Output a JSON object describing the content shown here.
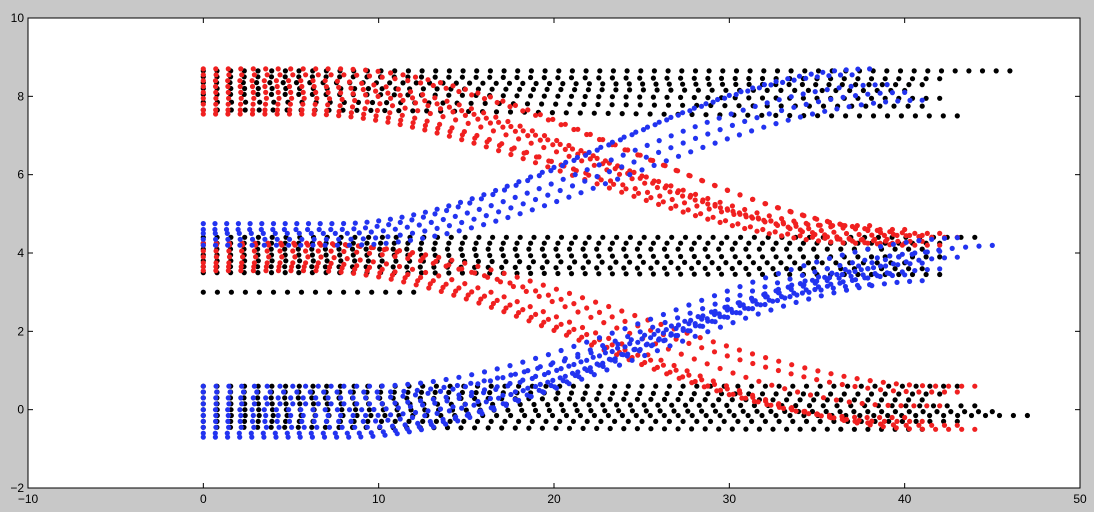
{
  "chart_data": {
    "type": "scatter",
    "title": "",
    "xlabel": "",
    "ylabel": "",
    "xlim": [
      -10,
      50
    ],
    "ylim": [
      -2,
      10
    ],
    "x_ticks": [
      -10,
      0,
      10,
      20,
      30,
      40,
      50
    ],
    "y_ticks": [
      -2,
      0,
      2,
      4,
      6,
      8,
      10
    ],
    "x_tick_labels": [
      "−10",
      "0",
      "10",
      "20",
      "30",
      "40",
      "50"
    ],
    "y_tick_labels": [
      "−2",
      "0",
      "2",
      "4",
      "6",
      "8",
      "10"
    ],
    "grid": false,
    "legend": "none",
    "colors": {
      "figure_bg": "#c8c8c8",
      "axes_bg": "#ffffff",
      "frame": "#000000"
    },
    "series": [
      {
        "color": "#000000",
        "tracks": [
          {
            "y0": 8.65,
            "y1": 8.65,
            "x_end": 46,
            "n": 60,
            "mid": 0.5
          },
          {
            "y0": 8.5,
            "y1": 8.45,
            "x_end": 42,
            "n": 55,
            "mid": 0.5
          },
          {
            "y0": 8.35,
            "y1": 8.3,
            "x_end": 41,
            "n": 55,
            "mid": 0.5
          },
          {
            "y0": 8.2,
            "y1": 8.15,
            "x_end": 40,
            "n": 52,
            "mid": 0.5
          },
          {
            "y0": 8.05,
            "y1": 7.95,
            "x_end": 42,
            "n": 55,
            "mid": 0.5
          },
          {
            "y0": 7.85,
            "y1": 7.75,
            "x_end": 41,
            "n": 52,
            "mid": 0.5
          },
          {
            "y0": 7.65,
            "y1": 7.5,
            "x_end": 43,
            "n": 55,
            "mid": 0.5
          },
          {
            "y0": 4.4,
            "y1": 4.4,
            "x_end": 44,
            "n": 57,
            "mid": 0.5
          },
          {
            "y0": 4.25,
            "y1": 4.25,
            "x_end": 42,
            "n": 55,
            "mid": 0.5
          },
          {
            "y0": 4.1,
            "y1": 4.1,
            "x_end": 41,
            "n": 54,
            "mid": 0.5
          },
          {
            "y0": 3.95,
            "y1": 3.9,
            "x_end": 42,
            "n": 55,
            "mid": 0.5
          },
          {
            "y0": 3.8,
            "y1": 3.75,
            "x_end": 40,
            "n": 52,
            "mid": 0.5
          },
          {
            "y0": 3.65,
            "y1": 3.6,
            "x_end": 41,
            "n": 54,
            "mid": 0.5
          },
          {
            "y0": 3.5,
            "y1": 3.45,
            "x_end": 42,
            "n": 55,
            "mid": 0.5
          },
          {
            "y0": 3.0,
            "y1": 3.0,
            "x_end": 12,
            "n": 16,
            "mid": 0.5
          },
          {
            "y0": 0.6,
            "y1": 0.6,
            "x_end": 43,
            "n": 56,
            "mid": 0.5
          },
          {
            "y0": 0.45,
            "y1": 0.4,
            "x_end": 42,
            "n": 55,
            "mid": 0.5
          },
          {
            "y0": 0.3,
            "y1": 0.25,
            "x_end": 41,
            "n": 54,
            "mid": 0.5
          },
          {
            "y0": 0.15,
            "y1": 0.1,
            "x_end": 44,
            "n": 57,
            "mid": 0.5
          },
          {
            "y0": 0.0,
            "y1": -0.05,
            "x_end": 45,
            "n": 58,
            "mid": 0.5
          },
          {
            "y0": -0.15,
            "y1": -0.15,
            "x_end": 47,
            "n": 60,
            "mid": 0.5
          },
          {
            "y0": -0.3,
            "y1": -0.3,
            "x_end": 43,
            "n": 56,
            "mid": 0.5
          },
          {
            "y0": -0.45,
            "y1": -0.5,
            "x_end": 41,
            "n": 54,
            "mid": 0.5
          }
        ]
      },
      {
        "color": "#f02020",
        "tracks": [
          {
            "y0": 8.7,
            "y1": 4.5,
            "x_end": 42,
            "n": 60,
            "mid": 0.58
          },
          {
            "y0": 8.55,
            "y1": 4.4,
            "x_end": 43,
            "n": 60,
            "mid": 0.58
          },
          {
            "y0": 8.4,
            "y1": 4.3,
            "x_end": 41,
            "n": 60,
            "mid": 0.56
          },
          {
            "y0": 8.25,
            "y1": 4.6,
            "x_end": 40,
            "n": 58,
            "mid": 0.56
          },
          {
            "y0": 8.1,
            "y1": 4.2,
            "x_end": 42,
            "n": 60,
            "mid": 0.56
          },
          {
            "y0": 7.95,
            "y1": 4.45,
            "x_end": 41,
            "n": 58,
            "mid": 0.55
          },
          {
            "y0": 7.8,
            "y1": 4.35,
            "x_end": 39,
            "n": 56,
            "mid": 0.55
          },
          {
            "y0": 7.65,
            "y1": 4.7,
            "x_end": 38,
            "n": 55,
            "mid": 0.55
          },
          {
            "y0": 7.55,
            "y1": 4.25,
            "x_end": 40,
            "n": 58,
            "mid": 0.54
          },
          {
            "y0": 4.2,
            "y1": 0.6,
            "x_end": 44,
            "n": 60,
            "mid": 0.56
          },
          {
            "y0": 4.05,
            "y1": 0.45,
            "x_end": 43,
            "n": 60,
            "mid": 0.56
          },
          {
            "y0": 3.9,
            "y1": -0.5,
            "x_end": 44,
            "n": 60,
            "mid": 0.54
          },
          {
            "y0": 3.75,
            "y1": -0.4,
            "x_end": 43,
            "n": 60,
            "mid": 0.54
          },
          {
            "y0": 3.65,
            "y1": -0.3,
            "x_end": 41,
            "n": 58,
            "mid": 0.55
          },
          {
            "y0": 3.55,
            "y1": -0.2,
            "x_end": 40,
            "n": 57,
            "mid": 0.55
          },
          {
            "y0": 4.25,
            "y1": 0.1,
            "x_end": 42,
            "n": 58,
            "mid": 0.55
          }
        ]
      },
      {
        "color": "#2233f0",
        "tracks": [
          {
            "y0": 4.75,
            "y1": 8.7,
            "x_end": 38,
            "n": 58,
            "mid": 0.6
          },
          {
            "y0": 4.6,
            "y1": 8.55,
            "x_end": 37,
            "n": 57,
            "mid": 0.6
          },
          {
            "y0": 4.5,
            "y1": 8.3,
            "x_end": 39,
            "n": 58,
            "mid": 0.6
          },
          {
            "y0": 4.35,
            "y1": 8.1,
            "x_end": 40,
            "n": 58,
            "mid": 0.6
          },
          {
            "y0": 4.2,
            "y1": 7.9,
            "x_end": 41,
            "n": 60,
            "mid": 0.6
          },
          {
            "y0": 0.6,
            "y1": 4.4,
            "x_end": 43,
            "n": 60,
            "mid": 0.62
          },
          {
            "y0": 0.45,
            "y1": 4.2,
            "x_end": 45,
            "n": 60,
            "mid": 0.62
          },
          {
            "y0": 0.3,
            "y1": 4.05,
            "x_end": 42,
            "n": 60,
            "mid": 0.62
          },
          {
            "y0": 0.15,
            "y1": 3.9,
            "x_end": 43,
            "n": 60,
            "mid": 0.62
          },
          {
            "y0": 0.0,
            "y1": 3.75,
            "x_end": 41,
            "n": 60,
            "mid": 0.62
          },
          {
            "y0": -0.15,
            "y1": 3.6,
            "x_end": 42,
            "n": 60,
            "mid": 0.62
          },
          {
            "y0": -0.3,
            "y1": 3.45,
            "x_end": 40,
            "n": 58,
            "mid": 0.62
          },
          {
            "y0": -0.45,
            "y1": 3.3,
            "x_end": 41,
            "n": 58,
            "mid": 0.62
          },
          {
            "y0": -0.6,
            "y1": 3.5,
            "x_end": 39,
            "n": 58,
            "mid": 0.62
          },
          {
            "y0": -0.7,
            "y1": 3.2,
            "x_end": 38,
            "n": 56,
            "mid": 0.62
          }
        ]
      }
    ]
  }
}
